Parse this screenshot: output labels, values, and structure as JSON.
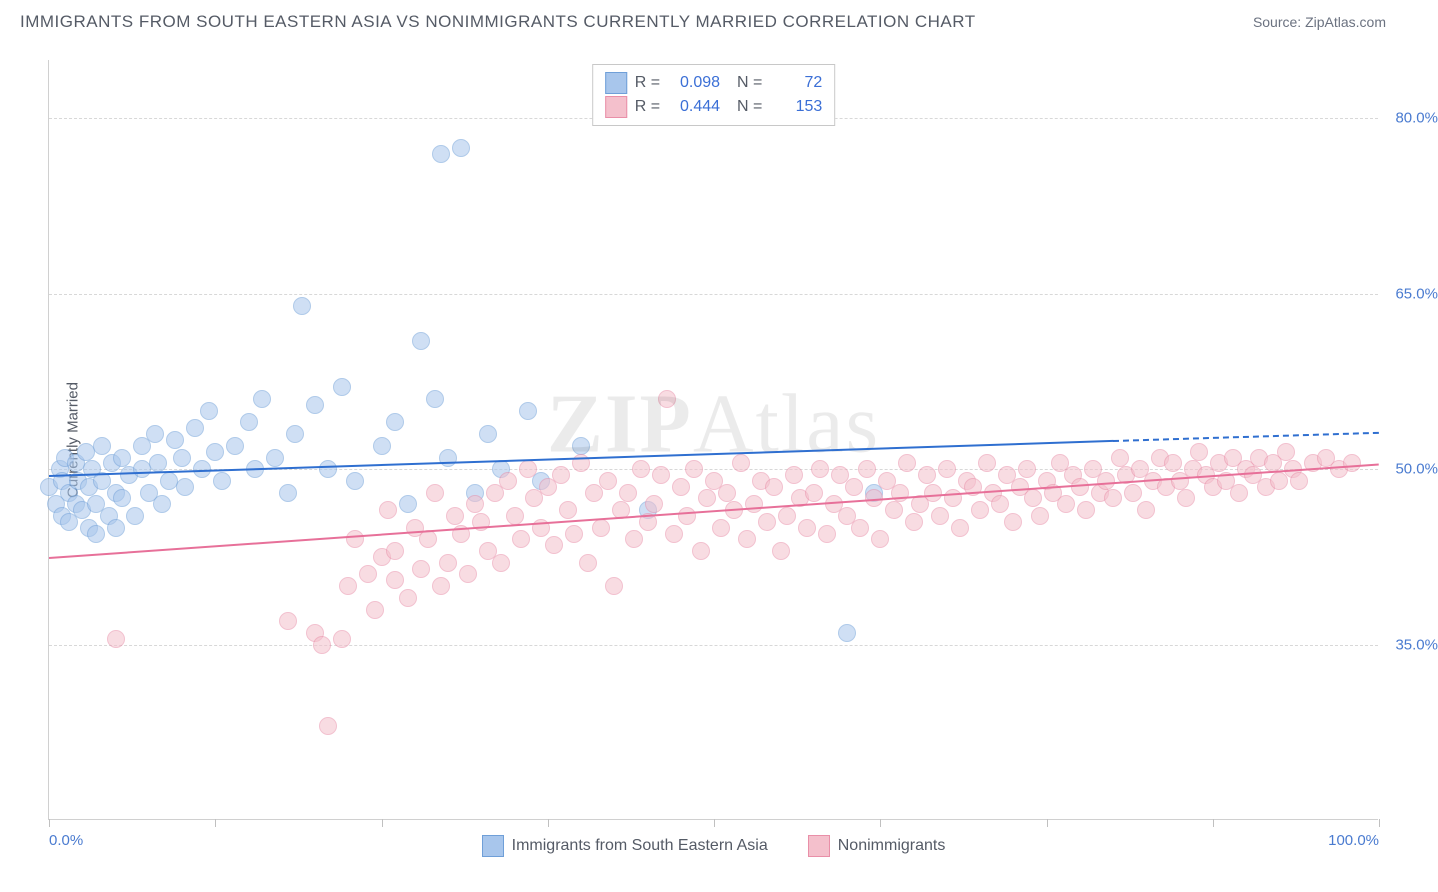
{
  "title": "IMMIGRANTS FROM SOUTH EASTERN ASIA VS NONIMMIGRANTS CURRENTLY MARRIED CORRELATION CHART",
  "source_label": "Source: ",
  "source_name": "ZipAtlas.com",
  "watermark": "ZIPAtlas",
  "chart": {
    "type": "scatter",
    "y_axis_title": "Currently Married",
    "xlim": [
      0,
      100
    ],
    "ylim": [
      20,
      85
    ],
    "y_ticks": [
      35.0,
      50.0,
      65.0,
      80.0
    ],
    "y_tick_labels": [
      "35.0%",
      "50.0%",
      "65.0%",
      "80.0%"
    ],
    "x_ticks": [
      0,
      12.5,
      25,
      37.5,
      50,
      62.5,
      75,
      87.5,
      100
    ],
    "x_tick_labels": {
      "0": "0.0%",
      "100": "100.0%"
    },
    "background_color": "#ffffff",
    "grid_color": "#d8d8d8",
    "marker_radius": 9,
    "marker_opacity": 0.55,
    "series": [
      {
        "name": "Immigrants from South Eastern Asia",
        "fill_color": "#a8c6ec",
        "stroke_color": "#6f9fd8",
        "line_color": "#2f6fd0",
        "R": "0.098",
        "N": "72",
        "trend": {
          "x0": 0,
          "y0": 49.5,
          "x1": 80,
          "y1": 52.5,
          "dash_from_x": 80,
          "x2": 100,
          "y2": 53.2
        },
        "points": [
          [
            0,
            48.5
          ],
          [
            0.5,
            47
          ],
          [
            0.8,
            50
          ],
          [
            1,
            46
          ],
          [
            1,
            49
          ],
          [
            1.2,
            51
          ],
          [
            1.5,
            45.5
          ],
          [
            1.5,
            48
          ],
          [
            2,
            47
          ],
          [
            2,
            50.5
          ],
          [
            2.2,
            49
          ],
          [
            2.5,
            46.5
          ],
          [
            2.8,
            51.5
          ],
          [
            3,
            45
          ],
          [
            3,
            48.5
          ],
          [
            3.2,
            50
          ],
          [
            3.5,
            47
          ],
          [
            3.5,
            44.5
          ],
          [
            4,
            49
          ],
          [
            4,
            52
          ],
          [
            4.5,
            46
          ],
          [
            4.7,
            50.5
          ],
          [
            5,
            48
          ],
          [
            5,
            45
          ],
          [
            5.5,
            51
          ],
          [
            5.5,
            47.5
          ],
          [
            6,
            49.5
          ],
          [
            6.5,
            46
          ],
          [
            7,
            52
          ],
          [
            7,
            50
          ],
          [
            7.5,
            48
          ],
          [
            8,
            53
          ],
          [
            8.2,
            50.5
          ],
          [
            8.5,
            47
          ],
          [
            9,
            49
          ],
          [
            9.5,
            52.5
          ],
          [
            10,
            51
          ],
          [
            10.2,
            48.5
          ],
          [
            11,
            53.5
          ],
          [
            11.5,
            50
          ],
          [
            12,
            55
          ],
          [
            12.5,
            51.5
          ],
          [
            13,
            49
          ],
          [
            14,
            52
          ],
          [
            15,
            54
          ],
          [
            15.5,
            50
          ],
          [
            16,
            56
          ],
          [
            17,
            51
          ],
          [
            18,
            48
          ],
          [
            18.5,
            53
          ],
          [
            19,
            64
          ],
          [
            20,
            55.5
          ],
          [
            21,
            50
          ],
          [
            22,
            57
          ],
          [
            23,
            49
          ],
          [
            25,
            52
          ],
          [
            26,
            54
          ],
          [
            27,
            47
          ],
          [
            28,
            61
          ],
          [
            29,
            56
          ],
          [
            29.5,
            77
          ],
          [
            30,
            51
          ],
          [
            31,
            77.5
          ],
          [
            32,
            48
          ],
          [
            33,
            53
          ],
          [
            34,
            50
          ],
          [
            36,
            55
          ],
          [
            37,
            49
          ],
          [
            40,
            52
          ],
          [
            45,
            46.5
          ],
          [
            62,
            48
          ],
          [
            60,
            36
          ]
        ]
      },
      {
        "name": "Nonimmigrants",
        "fill_color": "#f4c0cc",
        "stroke_color": "#e98fa8",
        "line_color": "#e77099",
        "R": "0.444",
        "N": "153",
        "trend": {
          "x0": 0,
          "y0": 42.5,
          "x1": 100,
          "y1": 50.5
        },
        "points": [
          [
            5,
            35.5
          ],
          [
            18,
            37
          ],
          [
            20,
            36
          ],
          [
            20.5,
            35
          ],
          [
            21,
            28
          ],
          [
            22,
            35.5
          ],
          [
            22.5,
            40
          ],
          [
            23,
            44
          ],
          [
            24,
            41
          ],
          [
            24.5,
            38
          ],
          [
            25,
            42.5
          ],
          [
            25.5,
            46.5
          ],
          [
            26,
            40.5
          ],
          [
            26,
            43
          ],
          [
            27,
            39
          ],
          [
            27.5,
            45
          ],
          [
            28,
            41.5
          ],
          [
            28.5,
            44
          ],
          [
            29,
            48
          ],
          [
            29.5,
            40
          ],
          [
            30,
            42
          ],
          [
            30.5,
            46
          ],
          [
            31,
            44.5
          ],
          [
            31.5,
            41
          ],
          [
            32,
            47
          ],
          [
            32.5,
            45.5
          ],
          [
            33,
            43
          ],
          [
            33.5,
            48
          ],
          [
            34,
            42
          ],
          [
            34.5,
            49
          ],
          [
            35,
            46
          ],
          [
            35.5,
            44
          ],
          [
            36,
            50
          ],
          [
            36.5,
            47.5
          ],
          [
            37,
            45
          ],
          [
            37.5,
            48.5
          ],
          [
            38,
            43.5
          ],
          [
            38.5,
            49.5
          ],
          [
            39,
            46.5
          ],
          [
            39.5,
            44.5
          ],
          [
            40,
            50.5
          ],
          [
            40.5,
            42
          ],
          [
            41,
            48
          ],
          [
            41.5,
            45
          ],
          [
            42,
            49
          ],
          [
            42.5,
            40
          ],
          [
            43,
            46.5
          ],
          [
            43.5,
            48
          ],
          [
            44,
            44
          ],
          [
            44.5,
            50
          ],
          [
            45,
            45.5
          ],
          [
            45.5,
            47
          ],
          [
            46,
            49.5
          ],
          [
            46.5,
            56
          ],
          [
            47,
            44.5
          ],
          [
            47.5,
            48.5
          ],
          [
            48,
            46
          ],
          [
            48.5,
            50
          ],
          [
            49,
            43
          ],
          [
            49.5,
            47.5
          ],
          [
            50,
            49
          ],
          [
            50.5,
            45
          ],
          [
            51,
            48
          ],
          [
            51.5,
            46.5
          ],
          [
            52,
            50.5
          ],
          [
            52.5,
            44
          ],
          [
            53,
            47
          ],
          [
            53.5,
            49
          ],
          [
            54,
            45.5
          ],
          [
            54.5,
            48.5
          ],
          [
            55,
            43
          ],
          [
            55.5,
            46
          ],
          [
            56,
            49.5
          ],
          [
            56.5,
            47.5
          ],
          [
            57,
            45
          ],
          [
            57.5,
            48
          ],
          [
            58,
            50
          ],
          [
            58.5,
            44.5
          ],
          [
            59,
            47
          ],
          [
            59.5,
            49.5
          ],
          [
            60,
            46
          ],
          [
            60.5,
            48.5
          ],
          [
            61,
            45
          ],
          [
            61.5,
            50
          ],
          [
            62,
            47.5
          ],
          [
            62.5,
            44
          ],
          [
            63,
            49
          ],
          [
            63.5,
            46.5
          ],
          [
            64,
            48
          ],
          [
            64.5,
            50.5
          ],
          [
            65,
            45.5
          ],
          [
            65.5,
            47
          ],
          [
            66,
            49.5
          ],
          [
            66.5,
            48
          ],
          [
            67,
            46
          ],
          [
            67.5,
            50
          ],
          [
            68,
            47.5
          ],
          [
            68.5,
            45
          ],
          [
            69,
            49
          ],
          [
            69.5,
            48.5
          ],
          [
            70,
            46.5
          ],
          [
            70.5,
            50.5
          ],
          [
            71,
            48
          ],
          [
            71.5,
            47
          ],
          [
            72,
            49.5
          ],
          [
            72.5,
            45.5
          ],
          [
            73,
            48.5
          ],
          [
            73.5,
            50
          ],
          [
            74,
            47.5
          ],
          [
            74.5,
            46
          ],
          [
            75,
            49
          ],
          [
            75.5,
            48
          ],
          [
            76,
            50.5
          ],
          [
            76.5,
            47
          ],
          [
            77,
            49.5
          ],
          [
            77.5,
            48.5
          ],
          [
            78,
            46.5
          ],
          [
            78.5,
            50
          ],
          [
            79,
            48
          ],
          [
            79.5,
            49
          ],
          [
            80,
            47.5
          ],
          [
            80.5,
            51
          ],
          [
            81,
            49.5
          ],
          [
            81.5,
            48
          ],
          [
            82,
            50
          ],
          [
            82.5,
            46.5
          ],
          [
            83,
            49
          ],
          [
            83.5,
            51
          ],
          [
            84,
            48.5
          ],
          [
            84.5,
            50.5
          ],
          [
            85,
            49
          ],
          [
            85.5,
            47.5
          ],
          [
            86,
            50
          ],
          [
            86.5,
            51.5
          ],
          [
            87,
            49.5
          ],
          [
            87.5,
            48.5
          ],
          [
            88,
            50.5
          ],
          [
            88.5,
            49
          ],
          [
            89,
            51
          ],
          [
            89.5,
            48
          ],
          [
            90,
            50
          ],
          [
            90.5,
            49.5
          ],
          [
            91,
            51
          ],
          [
            91.5,
            48.5
          ],
          [
            92,
            50.5
          ],
          [
            92.5,
            49
          ],
          [
            93,
            51.5
          ],
          [
            93.5,
            50
          ],
          [
            94,
            49
          ],
          [
            95,
            50.5
          ],
          [
            96,
            51
          ],
          [
            97,
            50
          ],
          [
            98,
            50.5
          ]
        ]
      }
    ]
  },
  "legend_bottom": [
    {
      "label": "Immigrants from South Eastern Asia",
      "fill": "#a8c6ec",
      "stroke": "#6f9fd8"
    },
    {
      "label": "Nonimmigrants",
      "fill": "#f4c0cc",
      "stroke": "#e98fa8"
    }
  ]
}
